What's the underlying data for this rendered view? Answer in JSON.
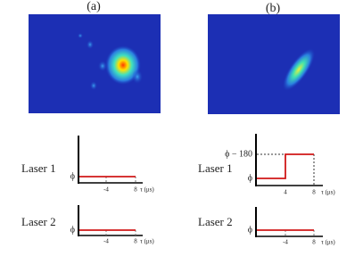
{
  "panels": [
    {
      "label": "(a)",
      "lasers": [
        {
          "name": "Laser 1",
          "phase_label": "ϕ",
          "ticks": [
            "-4",
            "8"
          ],
          "axis_label": "τ (μs)"
        },
        {
          "name": "Laser 2",
          "phase_label": "ϕ",
          "ticks": [
            "-4",
            "8"
          ],
          "axis_label": "τ (μs)"
        }
      ]
    },
    {
      "label": "(b)",
      "lasers": [
        {
          "name": "Laser 1",
          "phase_label": "ϕ",
          "upper_label": "ϕ − 180",
          "ticks": [
            "4",
            "8"
          ],
          "axis_label": "τ (μs)"
        },
        {
          "name": "Laser 2",
          "phase_label": "ϕ",
          "ticks": [
            "-4",
            "8"
          ],
          "axis_label": "τ (μs)"
        }
      ]
    }
  ]
}
